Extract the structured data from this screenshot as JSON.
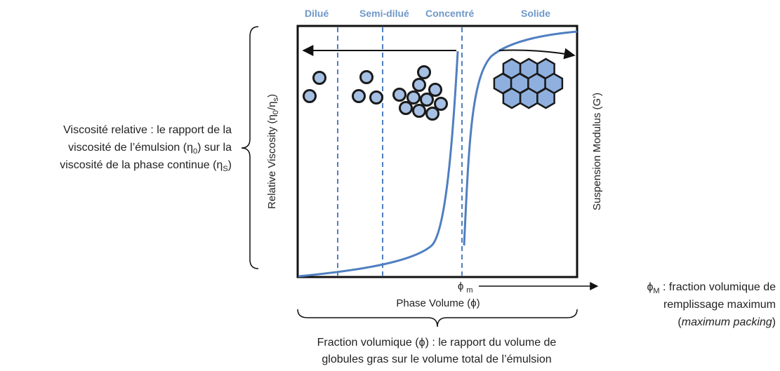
{
  "regions": [
    "Dilué",
    "Semi-dilué",
    "Concentré",
    "Solide"
  ],
  "x_axis_label": "Phase Volume (ϕ)",
  "y_axis_label": [
    "Relative Viscosity (η",
    "0",
    "/η",
    "s",
    ")"
  ],
  "y2_axis_label": "Suspension Modulus (G')",
  "phi_m": [
    "ϕ",
    "m"
  ],
  "left_annotation": [
    [
      "Viscosité relative : le rapport de la"
    ],
    [
      "viscosité de l’émulsion (η",
      "0",
      ") sur la"
    ],
    [
      "viscosité de la phase continue (η",
      "S",
      ")"
    ]
  ],
  "right_annotation": [
    [
      "ϕ",
      "M",
      " : fraction volumique de"
    ],
    "remplissage maximum",
    [
      "(",
      "maximum packing",
      ")"
    ]
  ],
  "bottom_annotation": [
    "Fraction volumique (ϕ) : le rapport du volume de",
    "globules gras sur le volume total de l’émulsion"
  ]
}
